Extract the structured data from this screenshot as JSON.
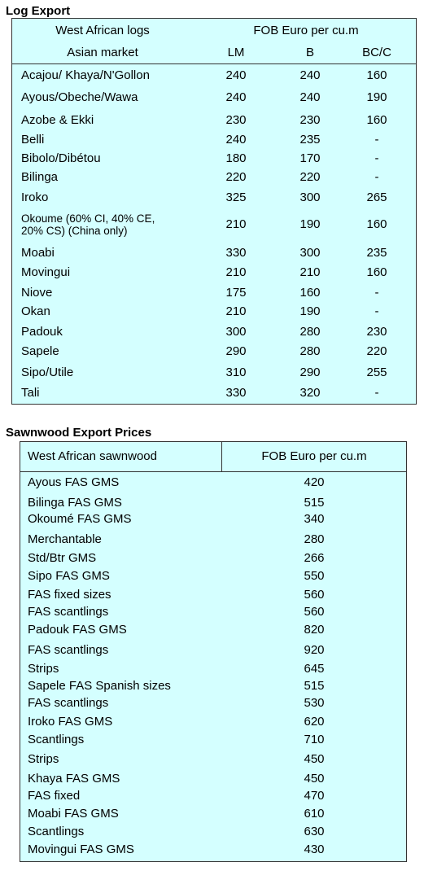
{
  "log_export": {
    "title": "Log Export",
    "header": {
      "col1_top": "West African logs",
      "col1_bottom": "Asian market",
      "price_group": "FOB Euro per cu.m",
      "columns": [
        "LM",
        "B",
        "BC/C"
      ]
    },
    "rows": [
      [
        "Acajou/ Khaya/N'Gollon",
        240,
        240,
        160
      ],
      [
        "Ayous/Obeche/Wawa",
        240,
        240,
        190
      ],
      [
        "Azobe & Ekki",
        230,
        230,
        160
      ],
      [
        "Belli",
        240,
        235,
        "-"
      ],
      [
        "Bibolo/Dibétou",
        180,
        170,
        "-"
      ],
      [
        "Bilinga",
        220,
        220,
        "-"
      ],
      [
        "Iroko",
        325,
        300,
        265
      ],
      [
        "Okoume (60% CI, 40% CE,\n20% CS) (China only)",
        210,
        190,
        160
      ],
      [
        "Moabi",
        330,
        300,
        235
      ],
      [
        "Movingui",
        210,
        210,
        160
      ],
      [
        "Niove",
        175,
        160,
        "-"
      ],
      [
        "Okan",
        210,
        190,
        "-"
      ],
      [
        "Padouk",
        300,
        280,
        230
      ],
      [
        "Sapele",
        290,
        280,
        220
      ],
      [
        "Sipo/Utile",
        310,
        290,
        255
      ],
      [
        "Tali",
        330,
        320,
        "-"
      ]
    ]
  },
  "sawnwood_export": {
    "title": "Sawnwood Export Prices",
    "header": [
      "West African sawnwood",
      "FOB Euro per cu.m"
    ],
    "rows": [
      [
        "Ayous FAS GMS",
        420
      ],
      [
        "Bilinga FAS GMS",
        515
      ],
      [
        "Okoumé FAS GMS",
        340
      ],
      [
        "Merchantable",
        280
      ],
      [
        "Std/Btr GMS",
        266
      ],
      [
        "Sipo FAS GMS",
        550
      ],
      [
        "FAS fixed sizes",
        560
      ],
      [
        "FAS scantlings",
        560
      ],
      [
        "Padouk FAS GMS",
        820
      ],
      [
        "FAS scantlings",
        920
      ],
      [
        "Strips",
        645
      ],
      [
        "Sapele FAS Spanish sizes",
        515
      ],
      [
        "FAS scantlings",
        530
      ],
      [
        "Iroko FAS GMS",
        620
      ],
      [
        "Scantlings",
        710
      ],
      [
        "Strips",
        450
      ],
      [
        "Khaya FAS GMS",
        450
      ],
      [
        "FAS fixed",
        470
      ],
      [
        "Moabi FAS GMS",
        610
      ],
      [
        "Scantlings",
        630
      ],
      [
        "Movingui FAS GMS",
        430
      ]
    ]
  }
}
